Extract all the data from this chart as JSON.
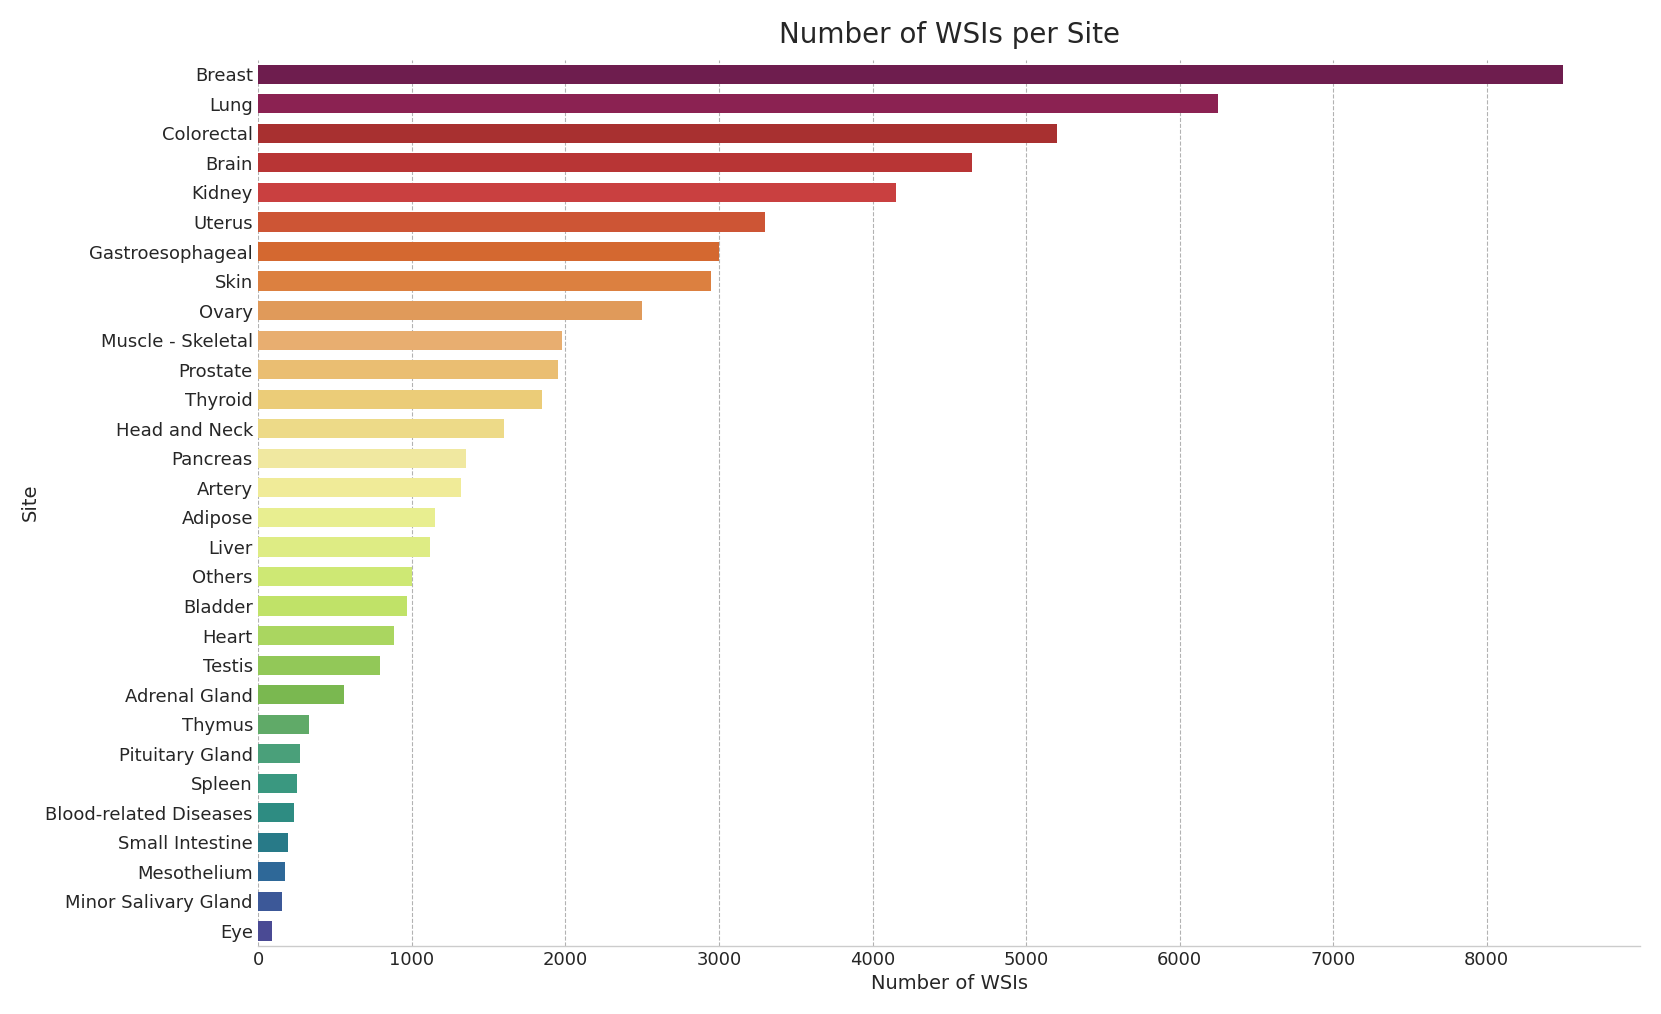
{
  "title": "Number of WSIs per Site",
  "xlabel": "Number of WSIs",
  "ylabel": "Site",
  "categories": [
    "Breast",
    "Lung",
    "Colorectal",
    "Brain",
    "Kidney",
    "Uterus",
    "Gastroesophageal",
    "Skin",
    "Ovary",
    "Muscle - Skeletal",
    "Prostate",
    "Thyroid",
    "Head and Neck",
    "Pancreas",
    "Artery",
    "Adipose",
    "Liver",
    "Others",
    "Bladder",
    "Heart",
    "Testis",
    "Adrenal Gland",
    "Thymus",
    "Pituitary Gland",
    "Spleen",
    "Blood-related Diseases",
    "Small Intestine",
    "Mesothelium",
    "Minor Salivary Gland",
    "Eye"
  ],
  "values": [
    8500,
    6250,
    5200,
    4650,
    4150,
    3300,
    3000,
    2950,
    2500,
    1980,
    1950,
    1850,
    1600,
    1350,
    1320,
    1150,
    1120,
    1000,
    970,
    880,
    790,
    560,
    330,
    270,
    250,
    230,
    190,
    175,
    155,
    90
  ],
  "bar_colors": [
    "#6e1d4e",
    "#8b2252",
    "#a83030",
    "#b83535",
    "#c94040",
    "#cd5535",
    "#d46830",
    "#dc8040",
    "#e09a5a",
    "#e8ae70",
    "#eabe72",
    "#ebcc78",
    "#edda88",
    "#f0e8a0",
    "#f0eb98",
    "#e8ee90",
    "#deec84",
    "#cee874",
    "#c0e268",
    "#aad660",
    "#92c858",
    "#7ab850",
    "#60aa68",
    "#4aa07a",
    "#3a9880",
    "#2e8c82",
    "#287a88",
    "#2e6898",
    "#3c5898",
    "#4a4a94"
  ],
  "xlim": [
    0,
    9000
  ],
  "xticks": [
    0,
    1000,
    2000,
    3000,
    4000,
    5000,
    6000,
    7000,
    8000
  ],
  "background_color": "#ffffff",
  "title_fontsize": 20,
  "label_fontsize": 14,
  "tick_fontsize": 13,
  "bar_height": 0.65
}
